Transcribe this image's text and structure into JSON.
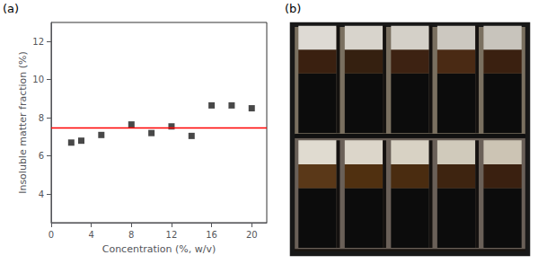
{
  "chart_data": {
    "type": "scatter",
    "annotations": [
      "(a)",
      "(b)"
    ],
    "x_label": "Concentration (%, w/v)",
    "y_label": "Insoluble matter fraction (%)",
    "x": [
      2,
      3,
      5,
      8,
      10,
      12,
      14,
      16,
      18,
      20
    ],
    "values": [
      6.7,
      6.8,
      7.1,
      7.65,
      7.2,
      7.55,
      7.05,
      8.65,
      8.65,
      8.5
    ],
    "color": "#1a1a1a",
    "marker": "square",
    "reference_line": {
      "y": 7.5,
      "color": "#ff0000"
    },
    "xlim": [
      0,
      21.5
    ],
    "ylim": [
      2.5,
      13
    ],
    "xticks": [
      0,
      4,
      8,
      12,
      16,
      20
    ],
    "yticks": [
      4,
      6,
      8,
      10,
      12
    ],
    "grid": false
  }
}
